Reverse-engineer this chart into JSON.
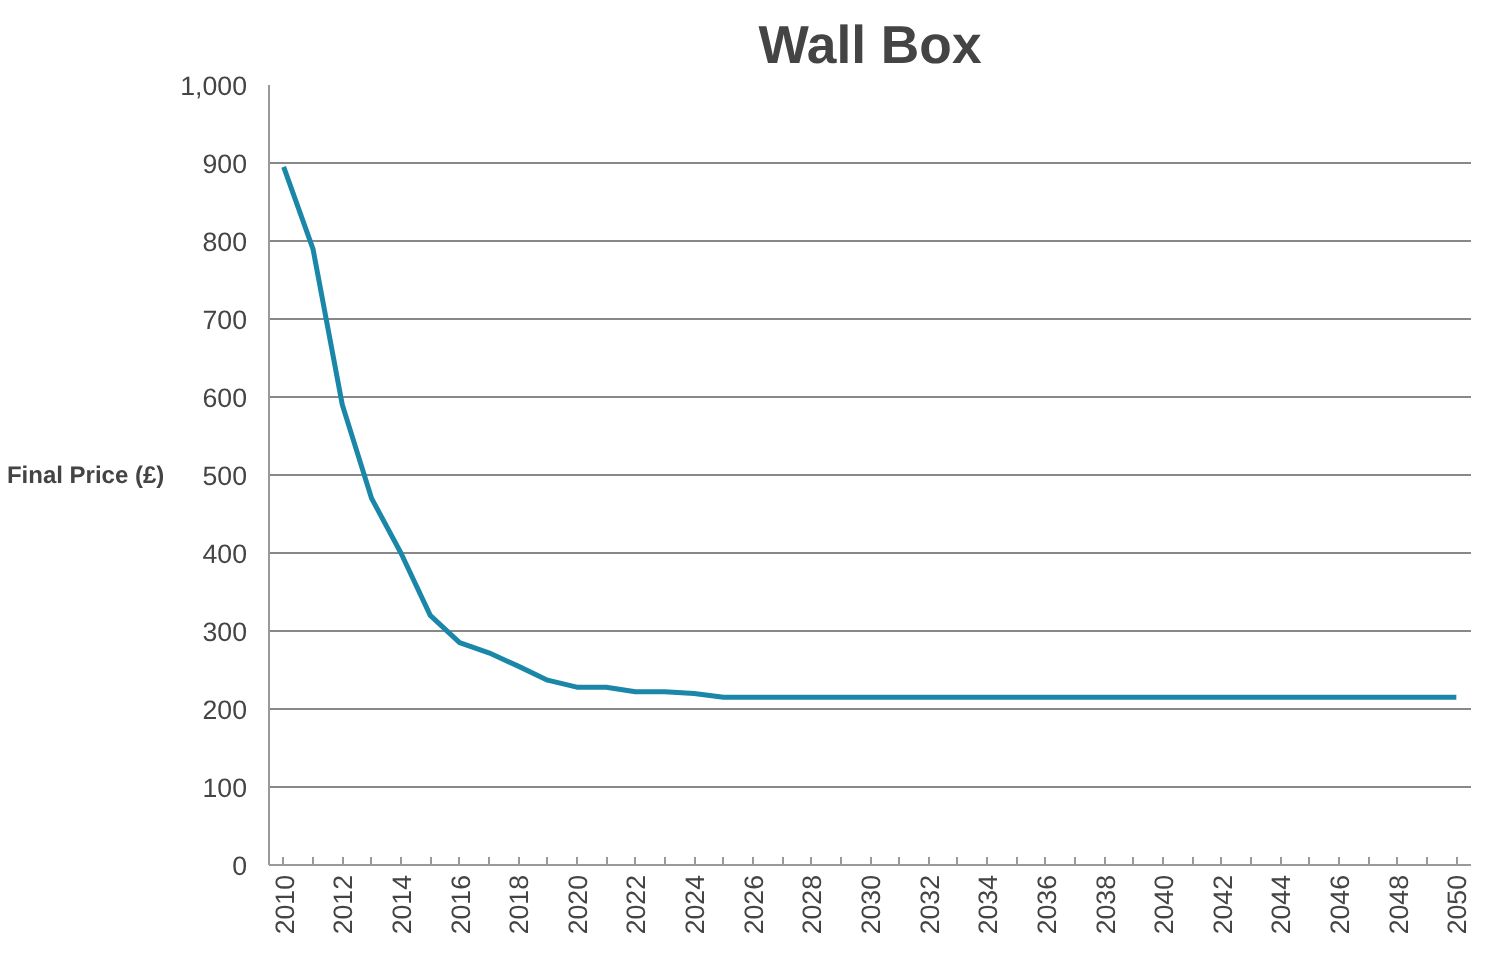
{
  "chart_data": {
    "type": "line",
    "title": "Wall Box",
    "ylabel": "Final Price (£)",
    "categories": [
      "2010",
      null,
      "2012",
      null,
      "2014",
      null,
      "2016",
      null,
      "2018",
      null,
      "2020",
      null,
      "2022",
      null,
      "2024",
      null,
      "2026",
      null,
      "2028",
      null,
      "2030",
      null,
      "2032",
      null,
      "2034",
      null,
      "2036",
      null,
      "2038",
      null,
      "2040",
      null,
      "2042",
      null,
      "2044",
      null,
      "2046",
      null,
      "2048",
      null,
      "2050"
    ],
    "series": [
      {
        "color": "#1a87a8",
        "values": [
          895,
          790,
          590,
          470,
          400,
          320,
          285,
          272,
          255,
          237,
          228,
          228,
          222,
          222,
          220,
          215,
          215,
          215,
          215,
          215,
          215,
          215,
          215,
          215,
          215,
          215,
          215,
          215,
          215,
          215,
          215,
          215,
          215,
          215,
          215,
          215,
          215,
          215,
          215,
          215,
          215
        ]
      }
    ],
    "ylim": [
      0,
      1000
    ],
    "yticks": [
      0,
      100,
      200,
      300,
      400,
      500,
      600,
      700,
      800,
      900,
      {
        "value": 1000,
        "label": "1,000"
      }
    ],
    "grid": "y",
    "marker": "none",
    "line_style": "solid"
  }
}
